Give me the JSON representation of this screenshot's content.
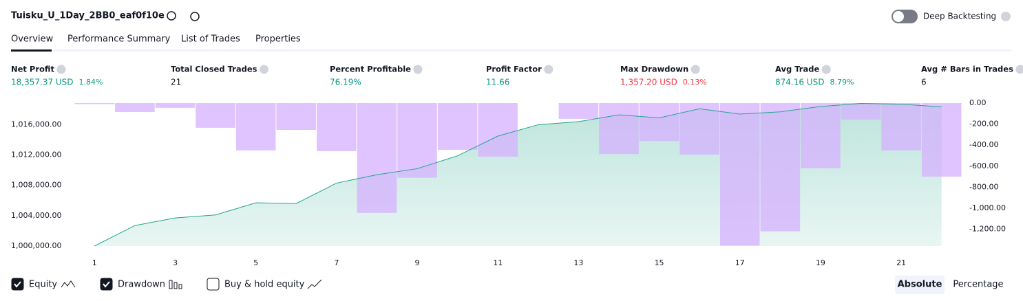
{
  "header": {
    "title": "Tuisku_U_1Day_2BB0_eaf0f10e",
    "toggle": "Deep Backtesting"
  },
  "tabs": [
    "Overview",
    "Performance Summary",
    "List of Trades",
    "Properties"
  ],
  "stats": [
    {
      "label": "Net Profit",
      "value": "18,357.37 USD",
      "extra": "1.84%",
      "tone": "pos"
    },
    {
      "label": "Total Closed Trades",
      "value": "21",
      "tone": "neutral"
    },
    {
      "label": "Percent Profitable",
      "value": "76.19%",
      "tone": "pos"
    },
    {
      "label": "Profit Factor",
      "value": "11.66",
      "tone": "pos"
    },
    {
      "label": "Max Drawdown",
      "value": "1,357.20 USD",
      "extra": "0.13%",
      "tone": "neg"
    },
    {
      "label": "Avg Trade",
      "value": "874.16 USD",
      "extra": "8.79%",
      "tone": "pos"
    },
    {
      "label": "Avg # Bars in Trades",
      "value": "6",
      "tone": "neutral"
    }
  ],
  "chart_data": {
    "type": "combo",
    "x": [
      1,
      2,
      3,
      4,
      5,
      6,
      7,
      8,
      9,
      10,
      11,
      12,
      13,
      14,
      15,
      16,
      17,
      18,
      19,
      20,
      21,
      22
    ],
    "xlim": [
      0.5,
      22.5
    ],
    "xticks": [
      1,
      3,
      5,
      7,
      9,
      11,
      13,
      15,
      17,
      19,
      21
    ],
    "ylim": [
      1000000,
      1018850
    ],
    "yticks": [
      {
        "value": 1000000,
        "label": "1,000,000.00"
      },
      {
        "value": 1004000,
        "label": "1,004,000.00"
      },
      {
        "value": 1008000,
        "label": "1,008,000.00"
      },
      {
        "value": 1012000,
        "label": "1,012,000.00"
      },
      {
        "value": 1016000,
        "label": "1,016,000.00"
      }
    ],
    "y2lim": [
      -1360,
      0
    ],
    "y2ticks": [
      {
        "value": 0,
        "label": "0.00"
      },
      {
        "value": -200,
        "label": "-200.00"
      },
      {
        "value": -400,
        "label": "-400.00"
      },
      {
        "value": -600,
        "label": "-600.00"
      },
      {
        "value": -800,
        "label": "-800.00"
      },
      {
        "value": -1000,
        "label": "-1,000.00"
      },
      {
        "value": -1200,
        "label": "-1,200.00"
      }
    ],
    "series": [
      {
        "name": "Equity",
        "color": "#22a58a",
        "axis": "y",
        "values": [
          1000000,
          1002700,
          1003700,
          1004100,
          1005700,
          1005600,
          1008300,
          1009400,
          1010200,
          1011900,
          1014500,
          1016000,
          1016400,
          1017300,
          1016900,
          1018100,
          1017400,
          1017700,
          1018400,
          1018800,
          1018700,
          1018357
        ]
      },
      {
        "name": "Drawdown",
        "color": "#d6b0ff",
        "axis": "y2",
        "values": [
          -10,
          -85,
          -45,
          -235,
          -450,
          -255,
          -457,
          -1045,
          -710,
          -445,
          -510,
          0,
          -150,
          -485,
          -360,
          -490,
          -1357,
          -1220,
          -620,
          -157,
          -450,
          -700
        ]
      }
    ]
  },
  "controls": {
    "buy_hold": "Buy & hold equity",
    "modes": [
      "Absolute",
      "Percentage"
    ]
  }
}
